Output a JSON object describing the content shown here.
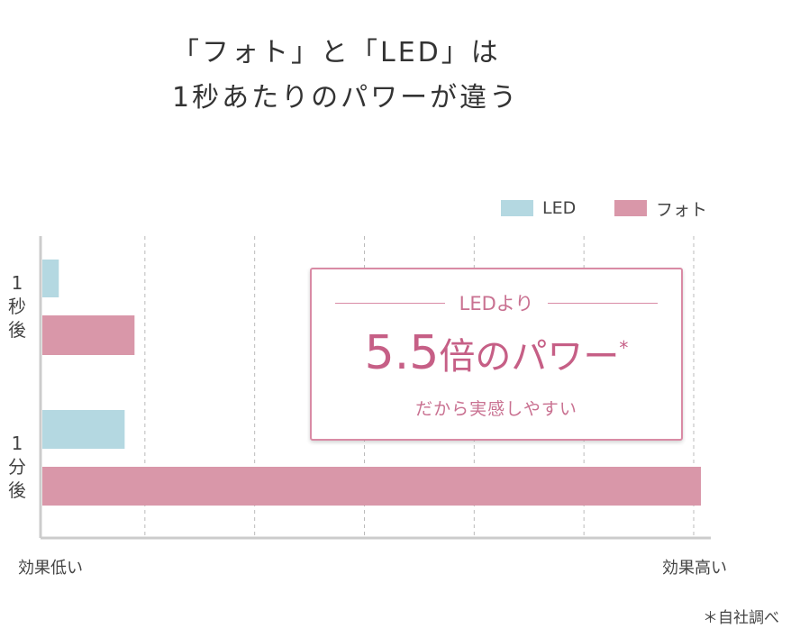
{
  "title": {
    "line1": "「フォト」と「LED」は",
    "line2": "1秒あたりのパワーが違う"
  },
  "colors": {
    "led": "#b4d8e1",
    "foto": "#d997a9",
    "accent": "#c65f86",
    "grid": "#bbbbbb",
    "axis": "#cccccc"
  },
  "chart_data": {
    "type": "bar",
    "orientation": "horizontal",
    "title": "「フォト」と「LED」は1秒あたりのパワーが違う",
    "categories": [
      "1秒後",
      "1分後"
    ],
    "category_labels": [
      [
        "1",
        "秒",
        "後"
      ],
      [
        "1",
        "分",
        "後"
      ]
    ],
    "series": [
      {
        "name": "LED",
        "key": "led",
        "values": [
          2.5,
          12.5
        ]
      },
      {
        "name": "フォト",
        "key": "foto",
        "values": [
          14,
          100
        ]
      }
    ],
    "xlim": [
      0,
      100
    ],
    "grid_divisions": 6,
    "grid": true,
    "xlabel_left": "効果低い",
    "xlabel_right": "効果高い",
    "legend_position": "top-right",
    "annotation": {
      "top": "LEDより",
      "number": "5.5",
      "word": "倍のパワー",
      "star": "*",
      "sub": "だから実感しやすい"
    }
  },
  "footnote": "＊自社調べ"
}
